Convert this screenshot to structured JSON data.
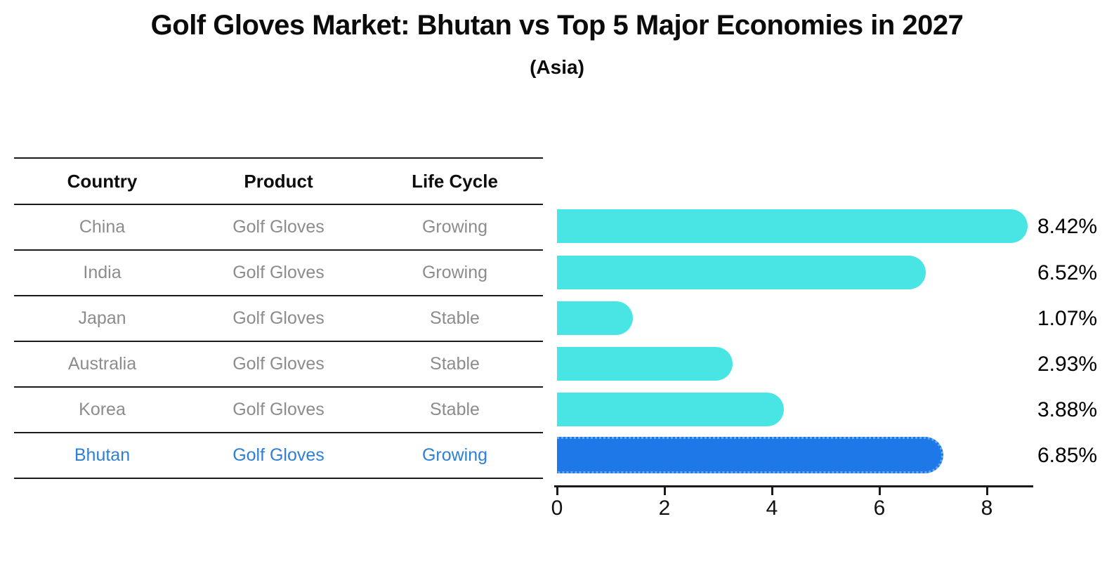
{
  "page": {
    "title": "Golf Gloves Market: Bhutan vs Top 5 Major Economies in 2027",
    "subtitle": "(Asia)"
  },
  "table": {
    "headers": [
      "Country",
      "Product",
      "Life Cycle"
    ],
    "rows": [
      {
        "country": "China",
        "product": "Golf Gloves",
        "life_cycle": "Growing",
        "highlight": false
      },
      {
        "country": "India",
        "product": "Golf Gloves",
        "life_cycle": "Growing",
        "highlight": false
      },
      {
        "country": "Japan",
        "product": "Golf Gloves",
        "life_cycle": "Stable",
        "highlight": false
      },
      {
        "country": "Australia",
        "product": "Golf Gloves",
        "life_cycle": "Stable",
        "highlight": false
      },
      {
        "country": "Korea",
        "product": "Golf Gloves",
        "life_cycle": "Stable",
        "highlight": false
      },
      {
        "country": "Bhutan",
        "product": "Golf Gloves",
        "life_cycle": "Growing",
        "highlight": true
      }
    ]
  },
  "chart_data": {
    "type": "bar",
    "orientation": "horizontal",
    "title": "Golf Gloves Market: Bhutan vs Top 5 Major Economies in 2027",
    "subtitle": "(Asia)",
    "categories": [
      "China",
      "India",
      "Japan",
      "Australia",
      "Korea",
      "Bhutan"
    ],
    "values": [
      8.42,
      6.52,
      1.07,
      2.93,
      3.88,
      6.85
    ],
    "value_labels": [
      "8.42%",
      "6.52%",
      "1.07%",
      "2.93%",
      "3.88%",
      "6.85%"
    ],
    "xlabel": "",
    "ylabel": "",
    "xlim": [
      0,
      8.85
    ],
    "xticks": [
      0,
      2,
      4,
      6,
      8
    ],
    "grid": false,
    "legend": "none",
    "bar_color": "#48e5e4",
    "highlight_index": 5,
    "highlight_color": "#1e78e8",
    "highlight_edge_color": "#69a9f2"
  },
  "colors": {
    "text_dark": "#0b0b0b",
    "text_gray": "#8c8c8c",
    "text_highlight": "#2e7fd6",
    "axis": "#1a1a1a",
    "background": "#ffffff"
  }
}
